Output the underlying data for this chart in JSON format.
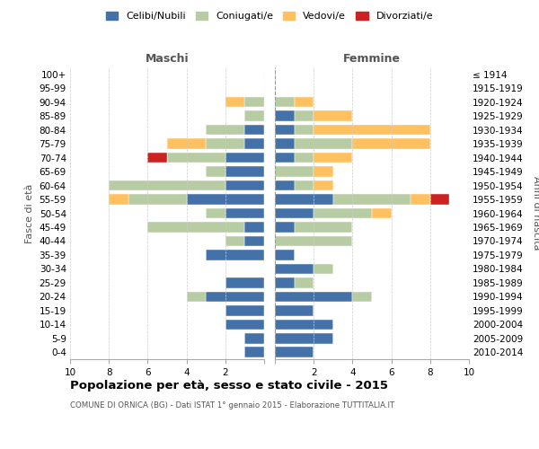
{
  "age_groups": [
    "0-4",
    "5-9",
    "10-14",
    "15-19",
    "20-24",
    "25-29",
    "30-34",
    "35-39",
    "40-44",
    "45-49",
    "50-54",
    "55-59",
    "60-64",
    "65-69",
    "70-74",
    "75-79",
    "80-84",
    "85-89",
    "90-94",
    "95-99",
    "100+"
  ],
  "birth_years": [
    "2010-2014",
    "2005-2009",
    "2000-2004",
    "1995-1999",
    "1990-1994",
    "1985-1989",
    "1980-1984",
    "1975-1979",
    "1970-1974",
    "1965-1969",
    "1960-1964",
    "1955-1959",
    "1950-1954",
    "1945-1949",
    "1940-1944",
    "1935-1939",
    "1930-1934",
    "1925-1929",
    "1920-1924",
    "1915-1919",
    "≤ 1914"
  ],
  "colors": {
    "celibi": "#4472a8",
    "coniugati": "#b8cca4",
    "vedovi": "#ffc060",
    "divorziati": "#cc2222"
  },
  "maschi": {
    "celibi": [
      1,
      1,
      2,
      2,
      3,
      2,
      0,
      3,
      1,
      1,
      2,
      4,
      2,
      2,
      2,
      1,
      1,
      0,
      0,
      0,
      0
    ],
    "coniugati": [
      0,
      0,
      0,
      0,
      1,
      0,
      0,
      0,
      1,
      5,
      1,
      3,
      6,
      1,
      3,
      2,
      2,
      1,
      1,
      0,
      0
    ],
    "vedovi": [
      0,
      0,
      0,
      0,
      0,
      0,
      0,
      0,
      0,
      0,
      0,
      1,
      0,
      0,
      0,
      2,
      0,
      0,
      1,
      0,
      0
    ],
    "divorziati": [
      0,
      0,
      0,
      0,
      0,
      0,
      0,
      0,
      0,
      0,
      0,
      0,
      0,
      0,
      1,
      0,
      0,
      0,
      0,
      0,
      0
    ]
  },
  "femmine": {
    "celibi": [
      2,
      3,
      3,
      2,
      4,
      1,
      2,
      1,
      0,
      1,
      2,
      3,
      1,
      0,
      1,
      1,
      1,
      1,
      0,
      0,
      0
    ],
    "coniugati": [
      0,
      0,
      0,
      0,
      1,
      1,
      1,
      0,
      4,
      3,
      3,
      4,
      1,
      2,
      1,
      3,
      1,
      1,
      1,
      0,
      0
    ],
    "vedovi": [
      0,
      0,
      0,
      0,
      0,
      0,
      0,
      0,
      0,
      0,
      1,
      1,
      1,
      1,
      2,
      4,
      6,
      2,
      1,
      0,
      0
    ],
    "divorziati": [
      0,
      0,
      0,
      0,
      0,
      0,
      0,
      0,
      0,
      0,
      0,
      1,
      0,
      0,
      0,
      0,
      0,
      0,
      0,
      0,
      0
    ]
  },
  "title": "Popolazione per età, sesso e stato civile - 2015",
  "subtitle": "COMUNE DI ORNICA (BG) - Dati ISTAT 1° gennaio 2015 - Elaborazione TUTTITALIA.IT",
  "label_maschi": "Maschi",
  "label_femmine": "Femmine",
  "ylabel_left": "Fasce di età",
  "ylabel_right": "Anni di nascita",
  "xlim": 10,
  "legend_labels": [
    "Celibi/Nubili",
    "Coniugati/e",
    "Vedovi/e",
    "Divorziati/e"
  ]
}
